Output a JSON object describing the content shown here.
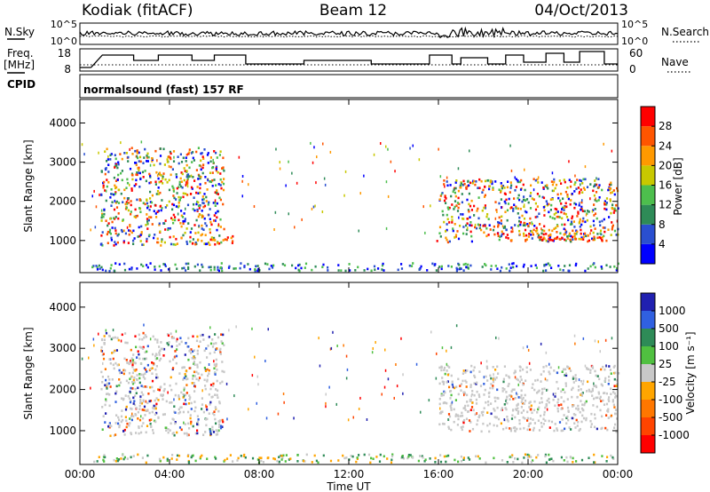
{
  "header": {
    "station": "Kodiak (fitACF)",
    "beam": "Beam 12",
    "date": "04/Oct/2013"
  },
  "top_panels": {
    "nsky_label": "N.Sky",
    "nsearch_label": "N.Search",
    "nsky_ticks": [
      "10^5",
      "10^0"
    ],
    "nsearch_ticks": [
      "10^5",
      "10^0"
    ],
    "freq_label_1": "Freq.",
    "freq_label_2": "[MHz]",
    "freq_ticks": [
      "18",
      "8"
    ],
    "nave_label": "Nave",
    "nave_ticks": [
      "60",
      "0"
    ],
    "cpid_label": "CPID",
    "cpid_text": "normalsound (fast) 157 RF"
  },
  "chart_data": [
    {
      "type": "heatmap",
      "title": "",
      "xlabel": "Time UT",
      "ylabel": "Slant Range [km]",
      "x_ticks": [
        "00:00",
        "04:00",
        "08:00",
        "12:00",
        "16:00",
        "20:00",
        "00:00"
      ],
      "xlim_hours": [
        0,
        24
      ],
      "y_ticks": [
        1000,
        2000,
        3000,
        4000
      ],
      "ylim": [
        180,
        4600
      ],
      "colorbar": {
        "label": "Power [dB]",
        "ticks": [
          "4",
          "8",
          "12",
          "16",
          "20",
          "24",
          "28"
        ],
        "colors": [
          "#0000ff",
          "#2a4fd0",
          "#2e8b57",
          "#4dbe4d",
          "#c8c800",
          "#ff9900",
          "#ff5500",
          "#ff0000"
        ]
      },
      "echo_regions": [
        {
          "t0": 0.9,
          "t1": 6.4,
          "r0": 900,
          "r1": 3400,
          "power": "mixed"
        },
        {
          "t0": 5.2,
          "t1": 7.0,
          "r0": 950,
          "r1": 1150,
          "power": "high"
        },
        {
          "t0": 15.8,
          "t1": 16.4,
          "r0": 950,
          "r1": 1100,
          "power": "high"
        },
        {
          "t0": 16.0,
          "t1": 24.0,
          "r0": 1000,
          "r1": 2600,
          "power": "mixed"
        },
        {
          "t0": 19.0,
          "t1": 23.5,
          "r0": 1000,
          "r1": 1300,
          "power": "high"
        },
        {
          "t0": 0.5,
          "t1": 24.0,
          "r0": 250,
          "r1": 450,
          "power": "low"
        }
      ]
    },
    {
      "type": "heatmap",
      "title": "",
      "xlabel": "Time UT",
      "ylabel": "Slant Range [km]",
      "x_ticks": [
        "00:00",
        "04:00",
        "08:00",
        "12:00",
        "16:00",
        "20:00",
        "00:00"
      ],
      "xlim_hours": [
        0,
        24
      ],
      "y_ticks": [
        1000,
        2000,
        3000,
        4000
      ],
      "ylim": [
        180,
        4600
      ],
      "colorbar": {
        "label": "Velocity [m s⁻¹]",
        "ticks": [
          "1000",
          "500",
          "100",
          "25",
          "-25",
          "-100",
          "-500",
          "-1000"
        ],
        "colors": [
          "#2020b0",
          "#3060e0",
          "#2e8b57",
          "#50c040",
          "#c8c8c8",
          "#ffa500",
          "#ff7700",
          "#ff4400",
          "#ff0000"
        ]
      },
      "echo_regions": [
        {
          "t0": 0.9,
          "t1": 6.4,
          "r0": 900,
          "r1": 3400,
          "velocity": "low"
        },
        {
          "t0": 16.0,
          "t1": 24.0,
          "r0": 1000,
          "r1": 2600,
          "velocity": "ground"
        },
        {
          "t0": 0.5,
          "t1": 24.0,
          "r0": 250,
          "r1": 450,
          "velocity": "mixed"
        }
      ]
    }
  ]
}
